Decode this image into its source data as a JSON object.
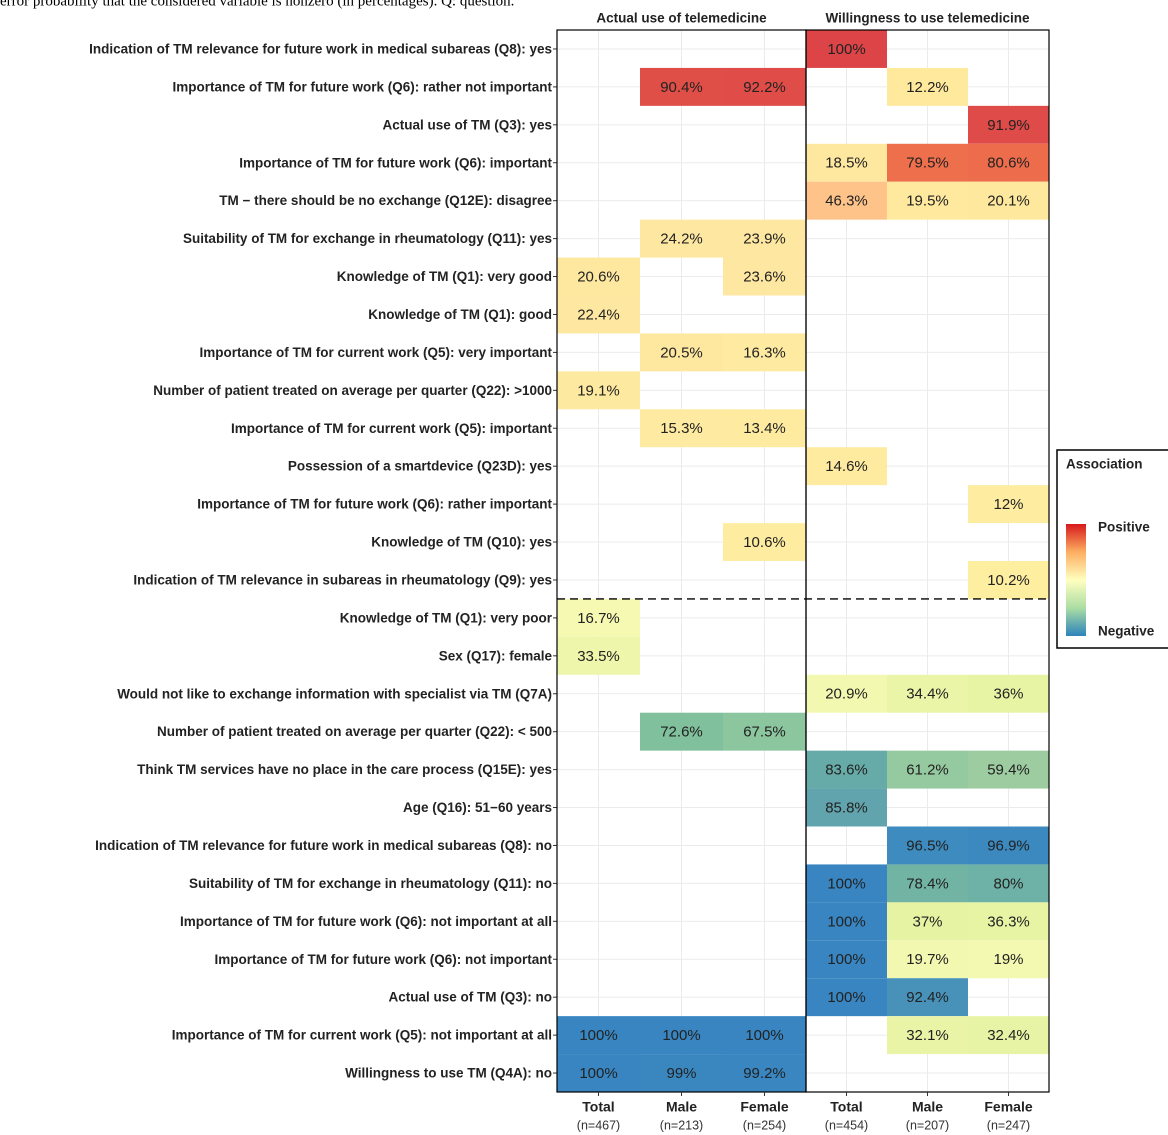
{
  "chart_data": {
    "type": "heatmap",
    "caption": "error probability that the considered variable is nonzero (in percentages). Q: question.",
    "facets": [
      "Actual use of telemedicine",
      "Willingness to use telemedicine"
    ],
    "columns": [
      {
        "label": "Total",
        "n": "(n=467)"
      },
      {
        "label": "Male",
        "n": "(n=213)"
      },
      {
        "label": "Female",
        "n": "(n=254)"
      },
      {
        "label": "Total",
        "n": "(n=454)"
      },
      {
        "label": "Male",
        "n": "(n=207)"
      },
      {
        "label": "Female",
        "n": "(n=247)"
      }
    ],
    "rows": [
      "Indication of TM relevance for future work in medical subareas (Q8): yes",
      "Importance of TM for future work (Q6): rather not important",
      "Actual use of TM (Q3): yes",
      "Importance of TM for future work (Q6): important",
      "TM − there should be no exchange (Q12E): disagree",
      "Suitability of TM for exchange in rheumatology (Q11): yes",
      "Knowledge of TM (Q1): very good",
      "Knowledge of TM (Q1): good",
      "Importance of TM for current work (Q5): very important",
      "Number of patient treated on average per quarter (Q22):  >1000",
      "Importance of TM for current work (Q5): important",
      "Possession of a smartdevice (Q23D): yes",
      "Importance of TM for future work (Q6): rather important",
      "Knowledge of TM (Q10): yes",
      "Indication of TM relevance in subareas in rheumatology (Q9): yes",
      "Knowledge of TM (Q1): very poor",
      "Sex (Q17): female",
      "Would not like to exchange information with specialist via TM (Q7A)",
      "Number of patient treated on average per quarter (Q22): < 500",
      "Think TM services have no place in the care process (Q15E): yes",
      "Age (Q16): 51−60 years",
      "Indication of TM relevance for future work in medical subareas (Q8): no",
      "Suitability of TM for exchange in rheumatology (Q11): no",
      "Importance of TM for future work (Q6): not important at all",
      "Importance of TM for future work (Q6): not important",
      "Actual use of TM (Q3): no",
      "Importance of TM for current work (Q5): not important at all",
      "Willingness to use TM (Q4A): no"
    ],
    "divider_after": 15,
    "values": [
      [
        null,
        null,
        null,
        100,
        null,
        null
      ],
      [
        null,
        90.4,
        92.2,
        null,
        12.2,
        null
      ],
      [
        null,
        null,
        null,
        null,
        null,
        91.9
      ],
      [
        null,
        null,
        null,
        18.5,
        79.5,
        80.6
      ],
      [
        null,
        null,
        null,
        46.3,
        19.5,
        20.1
      ],
      [
        null,
        24.2,
        23.9,
        null,
        null,
        null
      ],
      [
        20.6,
        null,
        23.6,
        null,
        null,
        null
      ],
      [
        22.4,
        null,
        null,
        null,
        null,
        null
      ],
      [
        null,
        20.5,
        16.3,
        null,
        null,
        null
      ],
      [
        19.1,
        null,
        null,
        null,
        null,
        null
      ],
      [
        null,
        15.3,
        13.4,
        null,
        null,
        null
      ],
      [
        null,
        null,
        null,
        14.6,
        null,
        null
      ],
      [
        null,
        null,
        null,
        null,
        null,
        12
      ],
      [
        null,
        null,
        10.6,
        null,
        null,
        null
      ],
      [
        null,
        null,
        null,
        null,
        null,
        10.2
      ],
      [
        16.7,
        null,
        null,
        null,
        null,
        null
      ],
      [
        33.5,
        null,
        null,
        null,
        null,
        null
      ],
      [
        null,
        null,
        null,
        20.9,
        34.4,
        36
      ],
      [
        null,
        72.6,
        67.5,
        null,
        null,
        null
      ],
      [
        null,
        null,
        null,
        83.6,
        61.2,
        59.4
      ],
      [
        null,
        null,
        null,
        85.8,
        null,
        null
      ],
      [
        null,
        null,
        null,
        null,
        96.5,
        96.9
      ],
      [
        null,
        null,
        null,
        100,
        78.4,
        80
      ],
      [
        null,
        null,
        null,
        100,
        37,
        36.3
      ],
      [
        null,
        null,
        null,
        100,
        19.7,
        19
      ],
      [
        null,
        null,
        null,
        100,
        92.4,
        null
      ],
      [
        100,
        100,
        100,
        null,
        32.1,
        32.4
      ],
      [
        100,
        99,
        99.2,
        null,
        null,
        null
      ]
    ],
    "value_labels": [
      [
        null,
        null,
        null,
        "100%",
        null,
        null
      ],
      [
        null,
        "90.4%",
        "92.2%",
        null,
        "12.2%",
        null
      ],
      [
        null,
        null,
        null,
        null,
        null,
        "91.9%"
      ],
      [
        null,
        null,
        null,
        "18.5%",
        "79.5%",
        "80.6%"
      ],
      [
        null,
        null,
        null,
        "46.3%",
        "19.5%",
        "20.1%"
      ],
      [
        null,
        "24.2%",
        "23.9%",
        null,
        null,
        null
      ],
      [
        "20.6%",
        null,
        "23.6%",
        null,
        null,
        null
      ],
      [
        "22.4%",
        null,
        null,
        null,
        null,
        null
      ],
      [
        null,
        "20.5%",
        "16.3%",
        null,
        null,
        null
      ],
      [
        "19.1%",
        null,
        null,
        null,
        null,
        null
      ],
      [
        null,
        "15.3%",
        "13.4%",
        null,
        null,
        null
      ],
      [
        null,
        null,
        null,
        "14.6%",
        null,
        null
      ],
      [
        null,
        null,
        null,
        null,
        null,
        "12%"
      ],
      [
        null,
        null,
        "10.6%",
        null,
        null,
        null
      ],
      [
        null,
        null,
        null,
        null,
        null,
        "10.2%"
      ],
      [
        "16.7%",
        null,
        null,
        null,
        null,
        null
      ],
      [
        "33.5%",
        null,
        null,
        null,
        null,
        null
      ],
      [
        null,
        null,
        null,
        "20.9%",
        "34.4%",
        "36%"
      ],
      [
        null,
        "72.6%",
        "67.5%",
        null,
        null,
        null
      ],
      [
        null,
        null,
        null,
        "83.6%",
        "61.2%",
        "59.4%"
      ],
      [
        null,
        null,
        null,
        "85.8%",
        null,
        null
      ],
      [
        null,
        null,
        null,
        null,
        "96.5%",
        "96.9%"
      ],
      [
        null,
        null,
        null,
        "100%",
        "78.4%",
        "80%"
      ],
      [
        null,
        null,
        null,
        "100%",
        "37%",
        "36.3%"
      ],
      [
        null,
        null,
        null,
        "100%",
        "19.7%",
        "19%"
      ],
      [
        null,
        null,
        null,
        "100%",
        "92.4%",
        null
      ],
      [
        "100%",
        "100%",
        "100%",
        null,
        "32.1%",
        "32.4%"
      ],
      [
        "100%",
        "99%",
        "99.2%",
        null,
        null,
        null
      ]
    ],
    "colors": [
      [
        null,
        null,
        null,
        "#dc4448",
        null,
        null
      ],
      [
        null,
        "#e04f47",
        "#e04d48",
        null,
        "#fee99c",
        null
      ],
      [
        null,
        null,
        null,
        null,
        null,
        "#df4b48"
      ],
      [
        null,
        null,
        null,
        "#fee8a0",
        "#ee6f4c",
        "#ed6c4b"
      ],
      [
        null,
        null,
        null,
        "#fdc388",
        "#fee99e",
        "#fee89d"
      ],
      [
        null,
        "#fee7a0",
        "#fee7a0",
        null,
        null,
        null
      ],
      [
        "#fee8a0",
        null,
        "#fee7a0",
        null,
        null,
        null
      ],
      [
        "#fee7a0",
        null,
        null,
        null,
        null,
        null
      ],
      [
        null,
        "#fee8a0",
        "#feeaa0",
        null,
        null,
        null
      ],
      [
        "#fee9a0",
        null,
        null,
        null,
        null,
        null
      ],
      [
        null,
        "#feeaa0",
        "#feeba0",
        null,
        null,
        null
      ],
      [
        null,
        null,
        null,
        "#feeba0",
        null,
        null
      ],
      [
        null,
        null,
        null,
        null,
        null,
        "#feeca0"
      ],
      [
        null,
        null,
        "#feeda0",
        null,
        null,
        null
      ],
      [
        null,
        null,
        null,
        null,
        null,
        "#feeea0"
      ],
      [
        "#f5f9b2",
        null,
        null,
        null,
        null,
        null
      ],
      [
        "#eef6ab",
        null,
        null,
        null,
        null,
        null
      ],
      [
        null,
        null,
        null,
        "#f3f8b0",
        "#eaf5a7",
        "#e7f4a4"
      ],
      [
        null,
        "#80c09d",
        "#8bc69f",
        null,
        null,
        null
      ],
      [
        null,
        null,
        null,
        "#67aba8",
        "#95caa0",
        "#9ccca0"
      ],
      [
        null,
        null,
        null,
        "#62a4ad",
        null,
        null
      ],
      [
        null,
        null,
        null,
        null,
        "#3e8bbf",
        "#3c89c0"
      ],
      [
        null,
        null,
        null,
        "#3885c1",
        "#72b4a3",
        "#6eb1a6"
      ],
      [
        null,
        null,
        null,
        "#3885c1",
        "#e6f3a3",
        "#e7f4a4"
      ],
      [
        null,
        null,
        null,
        "#3885c1",
        "#f3f8b1",
        "#f4f9b2"
      ],
      [
        null,
        null,
        null,
        "#3885c1",
        "#4892ba",
        null
      ],
      [
        "#3885c1",
        "#3885c1",
        "#3885c1",
        null,
        "#e9f4a6",
        "#e8f4a5"
      ],
      [
        "#3885c1",
        "#3a87c0",
        "#3986c1",
        null,
        null,
        null
      ]
    ],
    "legend": {
      "title": "Association",
      "labels": [
        "Positive",
        "Negative"
      ],
      "colors": [
        "#d7191c",
        "#fdae61",
        "#ffffbf",
        "#abdda4",
        "#2b83ba"
      ]
    }
  }
}
